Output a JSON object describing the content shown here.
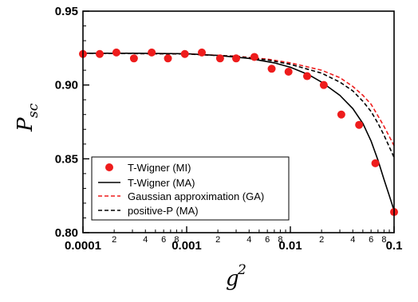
{
  "chart_data": {
    "type": "scatter",
    "xscale": "log",
    "xlim": [
      0.0001,
      0.1
    ],
    "ylim": [
      0.8,
      0.95
    ],
    "xlabel": "g",
    "xlabel_sup": "2",
    "ylabel": "P",
    "ylabel_sub": "sc",
    "y_ticks": [
      {
        "value": 0.8,
        "label": "0.80"
      },
      {
        "value": 0.85,
        "label": "0.85"
      },
      {
        "value": 0.9,
        "label": "0.90"
      },
      {
        "value": 0.95,
        "label": "0.95"
      }
    ],
    "x_major_ticks": [
      {
        "value": 0.0001,
        "label": "0.0001"
      },
      {
        "value": 0.001,
        "label": "0.001"
      },
      {
        "value": 0.01,
        "label": "0.01"
      },
      {
        "value": 0.1,
        "label": "0.1"
      }
    ],
    "x_minor_labels": [
      {
        "value": 0.0002,
        "label": "2"
      },
      {
        "value": 0.0004,
        "label": "4"
      },
      {
        "value": 0.0006,
        "label": "6"
      },
      {
        "value": 0.0008,
        "label": "8"
      },
      {
        "value": 0.002,
        "label": "2"
      },
      {
        "value": 0.004,
        "label": "4"
      },
      {
        "value": 0.006,
        "label": "6"
      },
      {
        "value": 0.008,
        "label": "8"
      },
      {
        "value": 0.02,
        "label": "2"
      },
      {
        "value": 0.04,
        "label": "4"
      },
      {
        "value": 0.06,
        "label": "6"
      },
      {
        "value": 0.08,
        "label": "8"
      }
    ],
    "legend_position": "bottom-left",
    "series": [
      {
        "name": "T-Wigner (MI)",
        "style": "markers",
        "color": "#ee1c1c",
        "points": [
          [
            0.0001,
            0.921
          ],
          [
            0.000145,
            0.921
          ],
          [
            0.00021,
            0.922
          ],
          [
            0.00031,
            0.918
          ],
          [
            0.00046,
            0.922
          ],
          [
            0.00066,
            0.918
          ],
          [
            0.00096,
            0.921
          ],
          [
            0.0014,
            0.922
          ],
          [
            0.0021,
            0.918
          ],
          [
            0.003,
            0.918
          ],
          [
            0.0045,
            0.919
          ],
          [
            0.0066,
            0.911
          ],
          [
            0.0096,
            0.909
          ],
          [
            0.0145,
            0.906
          ],
          [
            0.021,
            0.9
          ],
          [
            0.031,
            0.88
          ],
          [
            0.046,
            0.873
          ],
          [
            0.066,
            0.847
          ],
          [
            0.1,
            0.814
          ]
        ]
      },
      {
        "name": "T-Wigner (MA)",
        "style": "solid",
        "color": "#000000",
        "points": [
          [
            0.0001,
            0.9215
          ],
          [
            0.0003,
            0.9215
          ],
          [
            0.001,
            0.9212
          ],
          [
            0.002,
            0.92
          ],
          [
            0.004,
            0.918
          ],
          [
            0.007,
            0.915
          ],
          [
            0.01,
            0.912
          ],
          [
            0.015,
            0.907
          ],
          [
            0.02,
            0.902
          ],
          [
            0.03,
            0.893
          ],
          [
            0.04,
            0.884
          ],
          [
            0.05,
            0.874
          ],
          [
            0.06,
            0.862
          ],
          [
            0.07,
            0.849
          ],
          [
            0.08,
            0.836
          ],
          [
            0.09,
            0.825
          ],
          [
            0.1,
            0.815
          ]
        ]
      },
      {
        "name": "Gaussian approximation (GA)",
        "style": "dashed",
        "color": "#ee1c1c",
        "points": [
          [
            0.0001,
            0.9215
          ],
          [
            0.001,
            0.921
          ],
          [
            0.003,
            0.9195
          ],
          [
            0.006,
            0.9175
          ],
          [
            0.01,
            0.915
          ],
          [
            0.02,
            0.91
          ],
          [
            0.03,
            0.905
          ],
          [
            0.04,
            0.899
          ],
          [
            0.05,
            0.893
          ],
          [
            0.06,
            0.887
          ],
          [
            0.07,
            0.879
          ],
          [
            0.08,
            0.872
          ],
          [
            0.09,
            0.865
          ],
          [
            0.1,
            0.859
          ]
        ]
      },
      {
        "name": "positive-P (MA)",
        "style": "dashed",
        "color": "#000000",
        "points": [
          [
            0.0001,
            0.9215
          ],
          [
            0.001,
            0.921
          ],
          [
            0.003,
            0.9193
          ],
          [
            0.006,
            0.917
          ],
          [
            0.01,
            0.914
          ],
          [
            0.02,
            0.908
          ],
          [
            0.03,
            0.902
          ],
          [
            0.04,
            0.896
          ],
          [
            0.05,
            0.889
          ],
          [
            0.06,
            0.882
          ],
          [
            0.07,
            0.874
          ],
          [
            0.08,
            0.866
          ],
          [
            0.09,
            0.858
          ],
          [
            0.1,
            0.851
          ]
        ]
      }
    ]
  }
}
